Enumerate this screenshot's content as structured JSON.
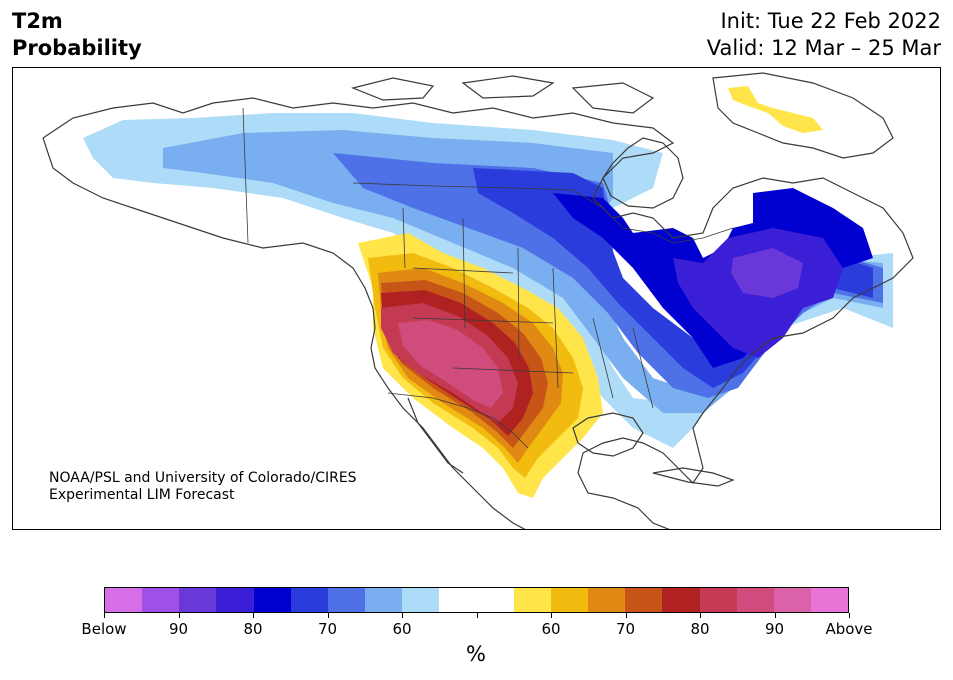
{
  "title": {
    "left_line1": "T2m",
    "left_line2": "Probability",
    "right_line1": "Init: Tue 22 Feb 2022",
    "right_line2": "Valid: 12 Mar – 25 Mar"
  },
  "credit": {
    "line1": "NOAA/PSL and University of Colorado/CIRES",
    "line2": "Experimental LIM Forecast"
  },
  "colorbar": {
    "colors": [
      "#d66ee8",
      "#a050e6",
      "#6a38d8",
      "#3b1fd6",
      "#0000d0",
      "#2a3ddc",
      "#4f71e8",
      "#79aff0",
      "#aedcf8",
      "#ffffff",
      "#ffffff",
      "#ffe54a",
      "#f2bb10",
      "#e08a14",
      "#c85518",
      "#b02222",
      "#c43a52",
      "#cf4c7c",
      "#db62a8",
      "#e874d8"
    ],
    "labels": [
      "Below",
      "90",
      "80",
      "70",
      "60",
      "60",
      "70",
      "80",
      "90",
      "Above"
    ],
    "unit": "%"
  },
  "map": {
    "region": "North America",
    "colors": {
      "light_blue": "#aedcf8",
      "sky_blue": "#79aff0",
      "mid_blue": "#4f71e8",
      "royal_blue": "#2a3ddc",
      "deep_blue": "#0000d0",
      "indigo": "#3b1fd6",
      "violet": "#6a38d8",
      "yellow": "#ffe54a",
      "gold": "#f2bb10",
      "orange": "#e08a14",
      "burnt": "#c85518",
      "red": "#b02222",
      "crimson": "#c43a52",
      "rose": "#cf4c7c"
    }
  }
}
